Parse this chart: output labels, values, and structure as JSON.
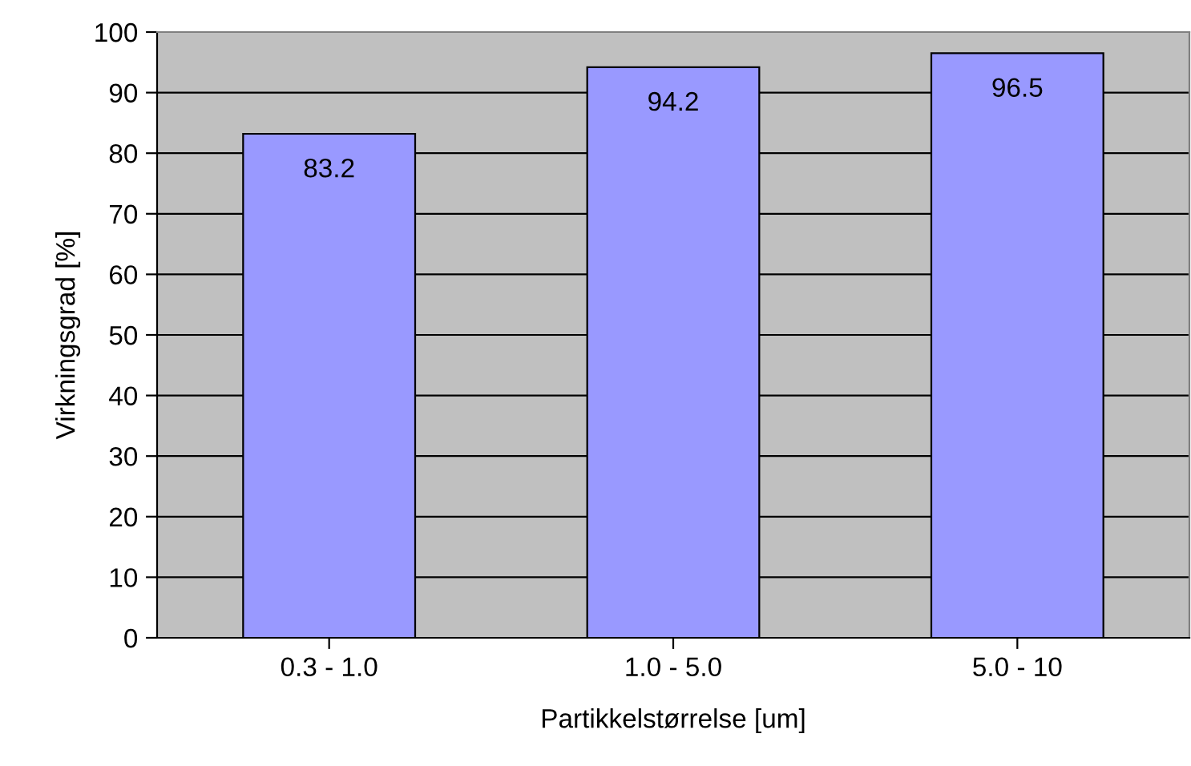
{
  "chart_data": {
    "type": "bar",
    "xlabel": "Partikkelstørrelse [um]",
    "ylabel": "Virkningsgrad [%]",
    "categories": [
      "0.3 - 1.0",
      "1.0 - 5.0",
      "5.0 - 10"
    ],
    "values": [
      83.2,
      94.2,
      96.5
    ],
    "color": "#9999ff",
    "ylim": [
      0,
      100
    ],
    "yticks": [
      0,
      10,
      20,
      30,
      40,
      50,
      60,
      70,
      80,
      90,
      100
    ],
    "grid": "y",
    "data_labels": true
  }
}
